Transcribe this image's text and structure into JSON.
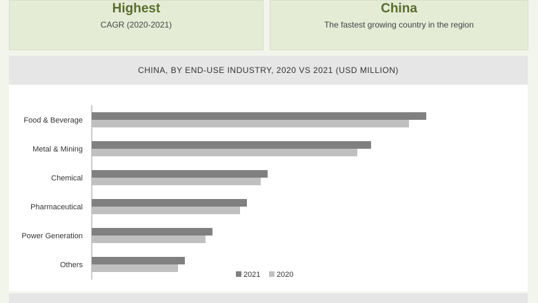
{
  "cards": [
    {
      "title": "Highest",
      "subtitle": "CAGR (2020-2021)"
    },
    {
      "title": "China",
      "subtitle": "The fastest growing country in the region"
    }
  ],
  "chart_title": "CHINA, BY END-USE INDUSTRY, 2020 VS 2021 (USD MILLION)",
  "colors": {
    "series_2021": "#808080",
    "series_2020": "#c0c0c0",
    "card_bg": "#e5ecd6",
    "title_green": "#5a6e2d"
  },
  "chart_data": {
    "type": "bar",
    "orientation": "horizontal",
    "title": "CHINA, BY END-USE INDUSTRY, 2020 VS 2021 (USD MILLION)",
    "categories": [
      "Food & Beverage",
      "Metal & Mining",
      "Chemical",
      "Pharmaceutical",
      "Power Generation",
      "Others"
    ],
    "series": [
      {
        "name": "2021",
        "values": [
          97,
          81,
          51,
          45,
          35,
          27
        ]
      },
      {
        "name": "2020",
        "values": [
          92,
          77,
          49,
          43,
          33,
          25
        ]
      }
    ],
    "xlim": [
      0,
      130
    ],
    "grid": false,
    "legend": "bottom"
  }
}
